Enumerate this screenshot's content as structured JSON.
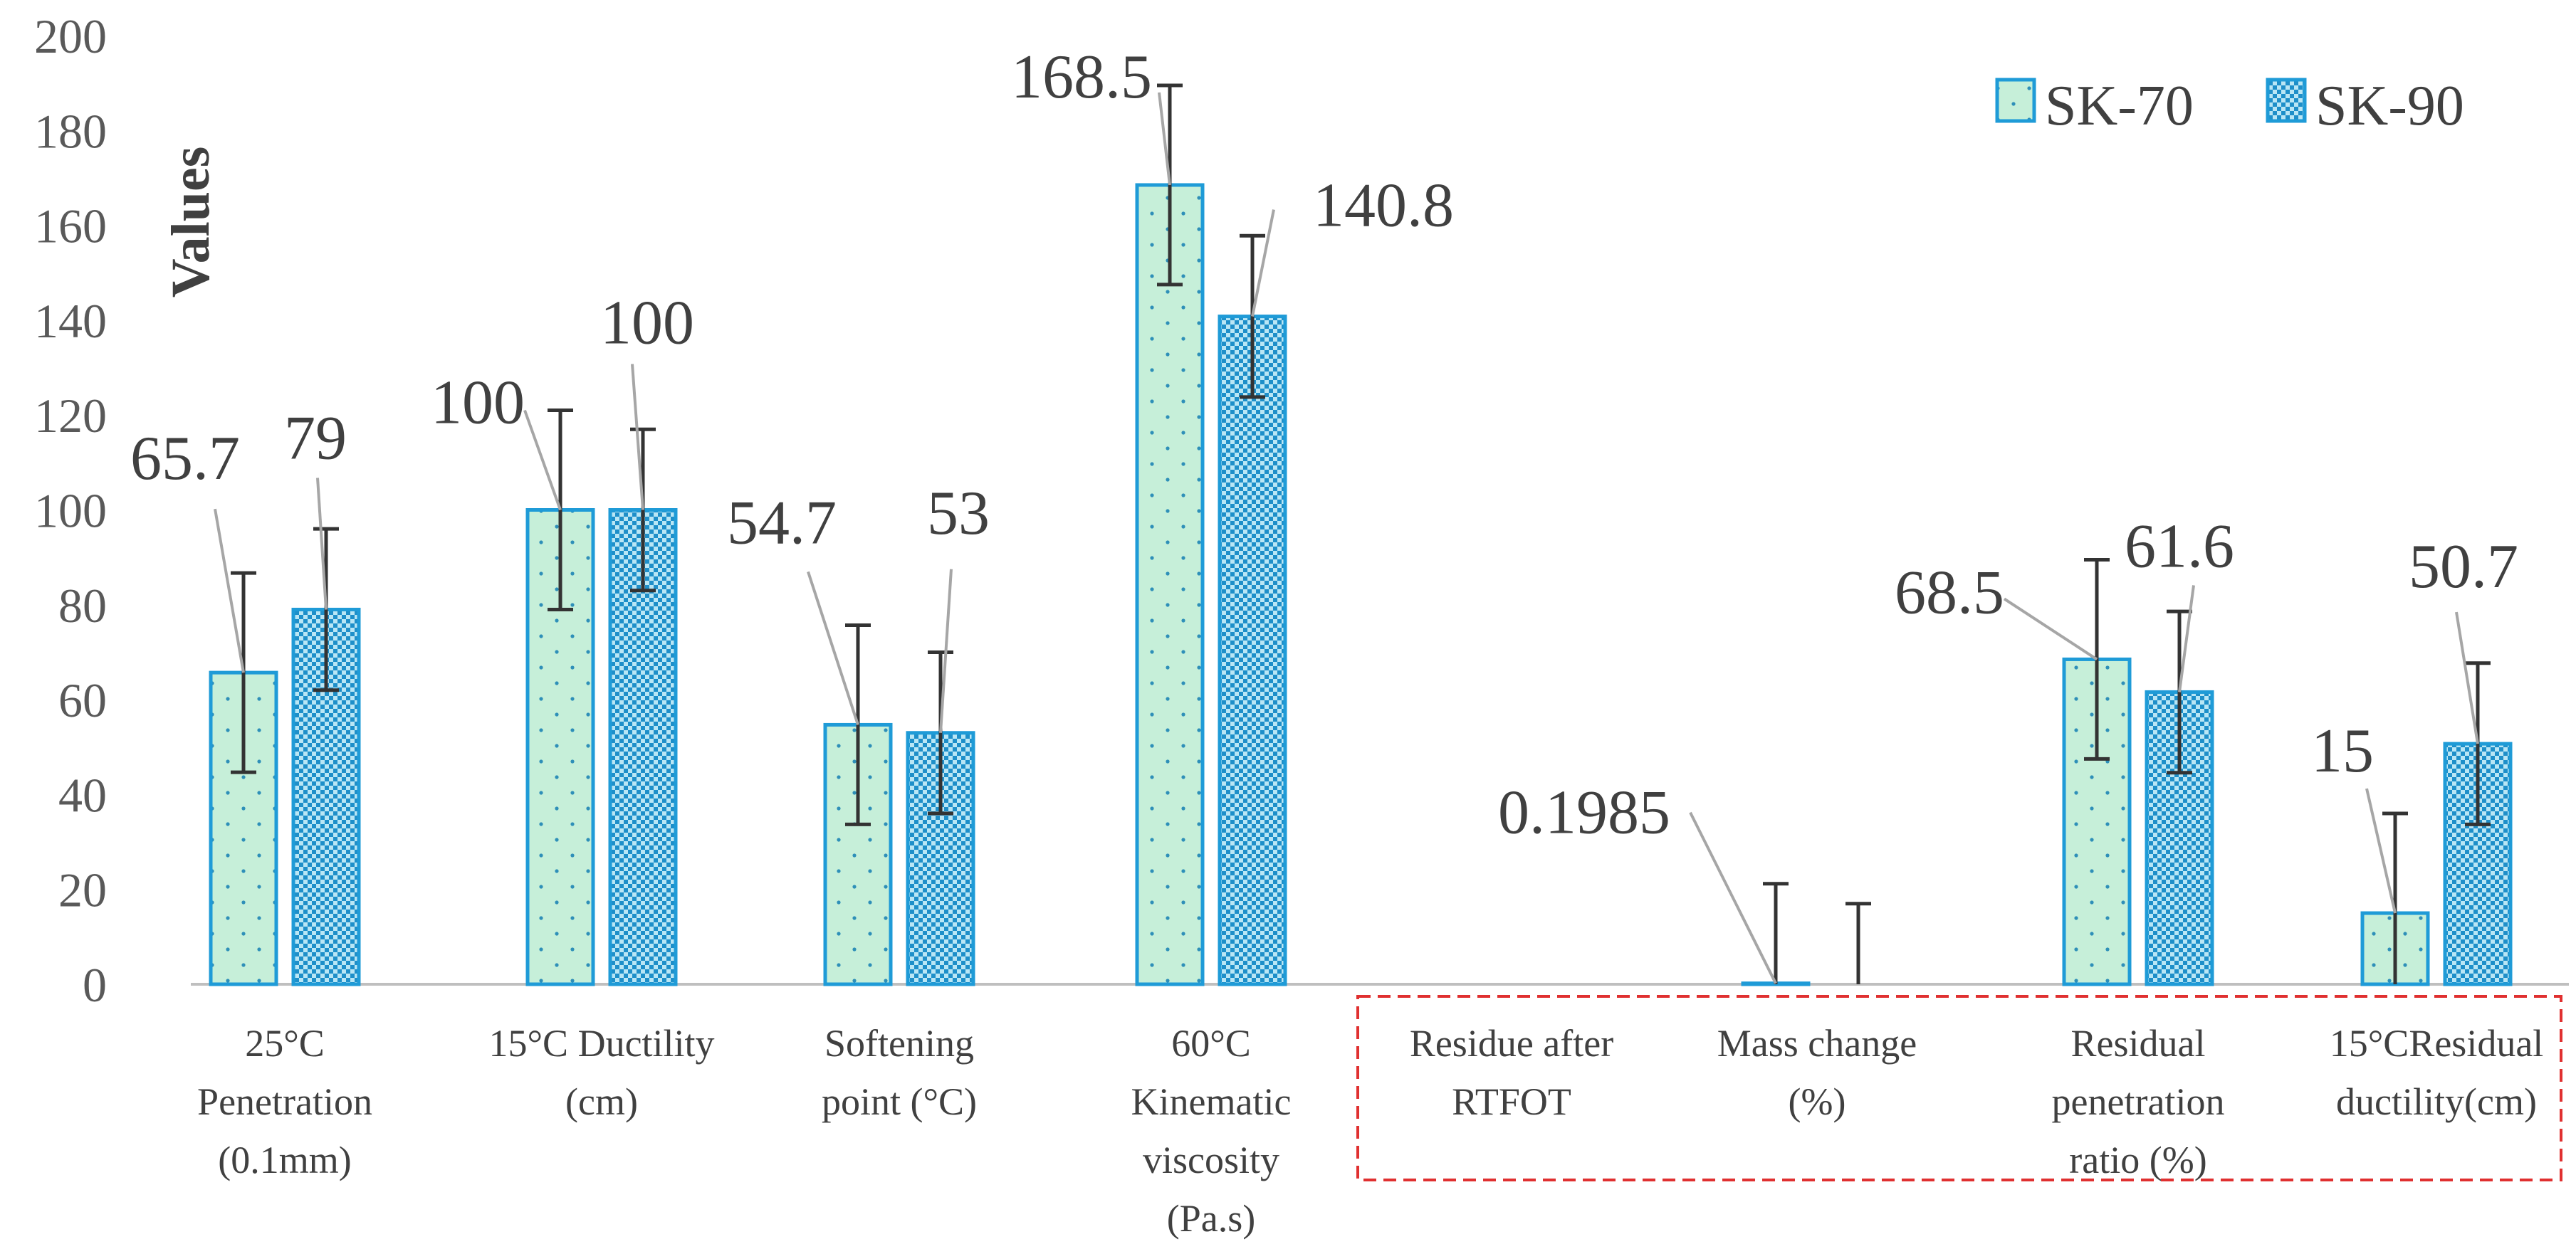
{
  "chart_data": {
    "type": "bar",
    "title": "",
    "xlabel": "",
    "ylabel": "Values",
    "ylim": [
      0,
      200
    ],
    "yticks": [
      0,
      20,
      40,
      60,
      80,
      100,
      120,
      140,
      160,
      180,
      200
    ],
    "grid": false,
    "legend_position": "top-right",
    "categories": [
      "25°C Penetration (0.1mm)",
      "15°C Ductility (cm)",
      "Softening point (°C)",
      "60°C Kinematic viscosity (Pa.s)",
      "Residue after RTFOT",
      "Mass change (%)",
      "Residual penetration ratio (%)",
      "15°CResidual ductility(cm)"
    ],
    "category_lines": [
      [
        "25°C",
        "Penetration",
        "(0.1mm)"
      ],
      [
        "15°C Ductility",
        "(cm)"
      ],
      [
        "Softening",
        "point (°C)"
      ],
      [
        "60°C",
        "Kinematic",
        "viscosity",
        "(Pa.s)"
      ],
      [
        "Residue after",
        "RTFOT"
      ],
      [
        "Mass change",
        "(%)"
      ],
      [
        "Residual",
        "penetration",
        "ratio (%)"
      ],
      [
        "15°CResidual",
        "ductility(cm)"
      ]
    ],
    "highlighted_group": "Residue after RTFOT",
    "series": [
      {
        "name": "SK-70",
        "color": "#C6EFD9",
        "edge": "#1F9BD7",
        "pattern": "dots",
        "values": [
          65.7,
          100,
          54.7,
          168.5,
          null,
          0.1985,
          68.5,
          15
        ],
        "labels": [
          "65.7",
          "100",
          "54.7",
          "168.5",
          null,
          "0.1985",
          "68.5",
          "15"
        ],
        "errors": [
          21,
          21,
          21,
          21,
          null,
          21,
          21,
          21
        ]
      },
      {
        "name": "SK-90",
        "color": "#B9E6F5",
        "edge": "#1F9BD7",
        "pattern": "checker",
        "values": [
          79,
          100,
          53,
          140.8,
          null,
          0,
          61.6,
          50.7
        ],
        "labels": [
          "79",
          "100",
          "53",
          "140.8",
          null,
          null,
          "61.6",
          "50.7"
        ],
        "errors": [
          17,
          17,
          17,
          17,
          null,
          17,
          17,
          17
        ]
      }
    ]
  }
}
